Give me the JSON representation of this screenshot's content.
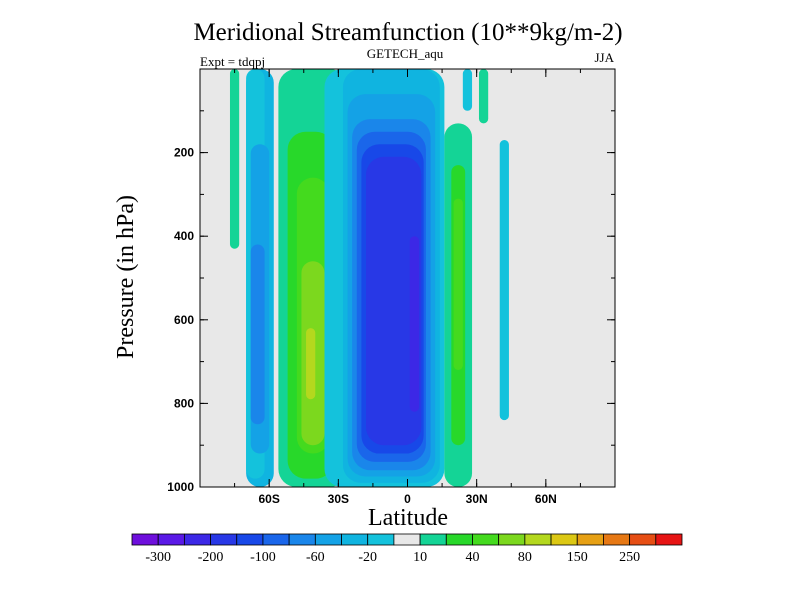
{
  "chart_data": {
    "type": "heatmap",
    "subtype": "filled-contour",
    "title": "Meridional Streamfunction (10**9kg/m-2)",
    "subtitle_center": "GETECH_aqu",
    "subtitle_left": "Expt = tdqpj",
    "subtitle_right": "JJA",
    "xlabel": "Latitude",
    "ylabel": "Pressure (in hPa)",
    "xlim": [
      -90,
      90
    ],
    "ylim": [
      1000,
      0
    ],
    "y_reversed": true,
    "x_ticks": [
      {
        "value": -60,
        "label": "60S"
      },
      {
        "value": -30,
        "label": "30S"
      },
      {
        "value": 0,
        "label": "0"
      },
      {
        "value": 30,
        "label": "30N"
      },
      {
        "value": 60,
        "label": "60N"
      }
    ],
    "y_ticks": [
      {
        "value": 200,
        "label": "200"
      },
      {
        "value": 400,
        "label": "400"
      },
      {
        "value": 600,
        "label": "600"
      },
      {
        "value": 800,
        "label": "800"
      },
      {
        "value": 1000,
        "label": "1000"
      }
    ],
    "levels": [
      -300,
      -250,
      -200,
      -150,
      -100,
      -80,
      -60,
      -40,
      -20,
      -10,
      10,
      20,
      40,
      60,
      80,
      100,
      150,
      200,
      250,
      300
    ],
    "colorbar": {
      "colors": [
        "#6e0fdc",
        "#5a19e6",
        "#3c28e6",
        "#2838e6",
        "#1848e8",
        "#1a66ea",
        "#1a86ea",
        "#14a2e6",
        "#10b4e0",
        "#14c2dc",
        "#e8e8e8",
        "#14d496",
        "#28d82a",
        "#44da1e",
        "#7cd81e",
        "#b4d81e",
        "#dcc814",
        "#e6a014",
        "#e67814",
        "#e64e14",
        "#e61414"
      ],
      "labels": [
        {
          "index": 1,
          "text": "-300"
        },
        {
          "index": 3,
          "text": "-200"
        },
        {
          "index": 5,
          "text": "-100"
        },
        {
          "index": 7,
          "text": "-60"
        },
        {
          "index": 9,
          "text": "-20"
        },
        {
          "index": 11,
          "text": "10"
        },
        {
          "index": 13,
          "text": "40"
        },
        {
          "index": 15,
          "text": "80"
        },
        {
          "index": 17,
          "text": "150"
        },
        {
          "index": 19,
          "text": "250"
        }
      ]
    },
    "background_color": "#e8e8e8",
    "cells": [
      {
        "lat": [
          -77,
          -73
        ],
        "p": [
          0,
          430
        ],
        "level": "10"
      },
      {
        "lat": [
          -70,
          -58
        ],
        "p": [
          0,
          1000
        ],
        "level": "-20"
      },
      {
        "lat": [
          -70,
          -62
        ],
        "p": [
          0,
          980
        ],
        "level": "-10"
      },
      {
        "lat": [
          -68,
          -60
        ],
        "p": [
          180,
          920
        ],
        "level": "-40"
      },
      {
        "lat": [
          -68,
          -62
        ],
        "p": [
          420,
          850
        ],
        "level": "-60"
      },
      {
        "lat": [
          -56,
          -26
        ],
        "p": [
          0,
          1000
        ],
        "level": "10"
      },
      {
        "lat": [
          -52,
          -32
        ],
        "p": [
          150,
          980
        ],
        "level": "20"
      },
      {
        "lat": [
          -48,
          -34
        ],
        "p": [
          260,
          920
        ],
        "level": "40"
      },
      {
        "lat": [
          -46,
          -36
        ],
        "p": [
          460,
          900
        ],
        "level": "60"
      },
      {
        "lat": [
          -44,
          -40
        ],
        "p": [
          620,
          790
        ],
        "level": "80"
      },
      {
        "lat": [
          -36,
          16
        ],
        "p": [
          0,
          1000
        ],
        "level": "-10"
      },
      {
        "lat": [
          -28,
          14
        ],
        "p": [
          0,
          990
        ],
        "level": "-20"
      },
      {
        "lat": [
          -26,
          12
        ],
        "p": [
          60,
          975
        ],
        "level": "-40"
      },
      {
        "lat": [
          -24,
          10
        ],
        "p": [
          120,
          960
        ],
        "level": "-60"
      },
      {
        "lat": [
          -22,
          8
        ],
        "p": [
          150,
          940
        ],
        "level": "-80"
      },
      {
        "lat": [
          -20,
          7
        ],
        "p": [
          180,
          920
        ],
        "level": "-100"
      },
      {
        "lat": [
          -18,
          6
        ],
        "p": [
          210,
          900
        ],
        "level": "-150"
      },
      {
        "lat": [
          1,
          5
        ],
        "p": [
          400,
          820
        ],
        "level": "-200"
      },
      {
        "lat": [
          16,
          28
        ],
        "p": [
          130,
          1000
        ],
        "level": "10"
      },
      {
        "lat": [
          19,
          25
        ],
        "p": [
          230,
          900
        ],
        "level": "20"
      },
      {
        "lat": [
          20,
          24
        ],
        "p": [
          310,
          720
        ],
        "level": "40"
      },
      {
        "lat": [
          24,
          28
        ],
        "p": [
          0,
          100
        ],
        "level": "-10"
      },
      {
        "lat": [
          31,
          35
        ],
        "p": [
          0,
          130
        ],
        "level": "10"
      },
      {
        "lat": [
          40,
          44
        ],
        "p": [
          170,
          840
        ],
        "level": "-10"
      }
    ]
  }
}
